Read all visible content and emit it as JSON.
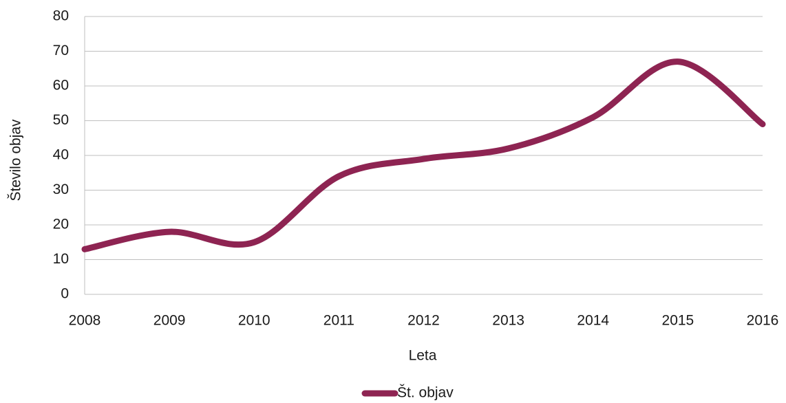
{
  "chart_data": {
    "type": "line",
    "x_label": "Leta",
    "y_label": "Število objav",
    "x": [
      2008,
      2009,
      2010,
      2011,
      2012,
      2013,
      2014,
      2015,
      2016
    ],
    "series": [
      {
        "name": "Št. objav",
        "color": "#8e2452",
        "values": [
          13,
          18,
          15,
          34,
          39,
          42,
          51,
          67,
          49
        ]
      }
    ],
    "xlim": [
      2008,
      2016
    ],
    "xticks": [
      2008,
      2009,
      2010,
      2011,
      2012,
      2013,
      2014,
      2015,
      2016
    ],
    "ylim": [
      0,
      80
    ],
    "yticks": [
      0,
      10,
      20,
      30,
      40,
      50,
      60,
      70,
      80
    ],
    "grid": true,
    "smooth": true,
    "legend": "bottom"
  }
}
